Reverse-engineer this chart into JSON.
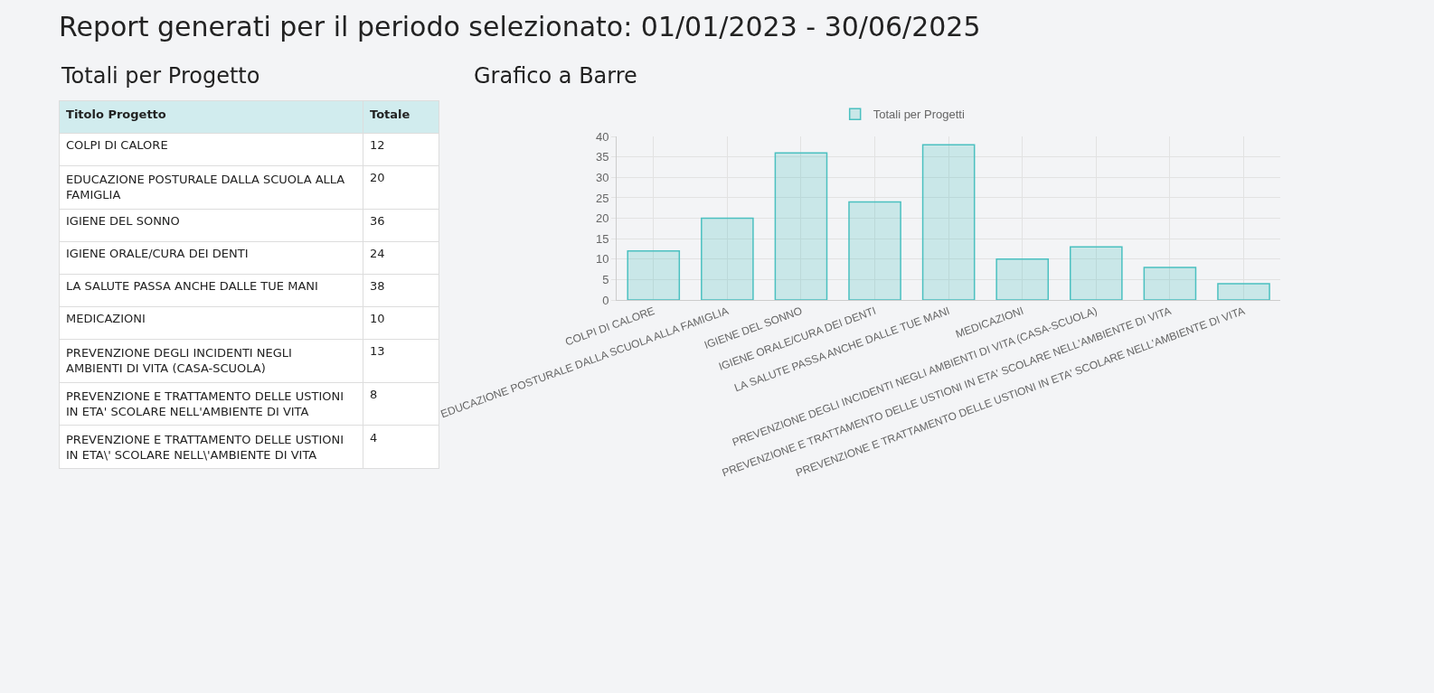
{
  "chart_data": [
    {
      "type": "other",
      "title": "Report generati per il periodo selezionato: 01/01/2023 - 30/06/2025",
      "subtitle": "Totali per Progetto",
      "annotations": [
        "Titolo Progetto",
        "Totale"
      ],
      "data_labels": true,
      "categories": [
        "COLPI DI CALORE",
        "EDUCAZIONE POSTURALE DALLA SCUOLA ALLA FAMIGLIA",
        "IGIENE DEL SONNO",
        "IGIENE ORALE/CURA DEI DENTI",
        "LA SALUTE PASSA ANCHE DALLE TUE MANI",
        "MEDICAZIONI",
        "PREVENZIONE DEGLI INCIDENTI NEGLI AMBIENTI DI VITA (CASA-SCUOLA)",
        "PREVENZIONE E TRATTAMENTO DELLE USTIONI IN ETA' SCOLARE NELL'AMBIENTE DI VITA",
        "PREVENZIONE E TRATTAMENTO DELLE USTIONI IN ETA\\' SCOLARE NELL\\'AMBIENTE DI VITA"
      ],
      "values": [
        12,
        20,
        36,
        24,
        38,
        10,
        13,
        8,
        4
      ]
    },
    {
      "type": "bar",
      "title": "Grafico a Barre",
      "legend": "top",
      "grid": true,
      "ylim": [
        0,
        40
      ],
      "yticks": [
        0,
        5,
        10,
        15,
        20,
        25,
        30,
        35,
        40
      ],
      "categories": [
        "COLPI DI CALORE",
        "EDUCAZIONE POSTURALE DALLA SCUOLA ALLA FAMIGLIA",
        "IGIENE DEL SONNO",
        "IGIENE ORALE/CURA DEI DENTI",
        "LA SALUTE PASSA ANCHE DALLE TUE MANI",
        "MEDICAZIONI",
        "PREVENZIONE DEGLI INCIDENTI NEGLI AMBIENTI DI VITA (CASA-SCUOLA)",
        "PREVENZIONE E TRATTAMENTO DELLE USTIONI IN ETA' SCOLARE NELL'AMBIENTE DI VITA",
        "PREVENZIONE E TRATTAMENTO DELLE USTIONI IN ETA' SCOLARE NELL'AMBIENTE DI VITA"
      ],
      "series": [
        {
          "name": "Totali per Progetti",
          "color": "#4bc0c0",
          "values": [
            12,
            20,
            36,
            24,
            38,
            10,
            13,
            8,
            4
          ]
        }
      ]
    }
  ]
}
